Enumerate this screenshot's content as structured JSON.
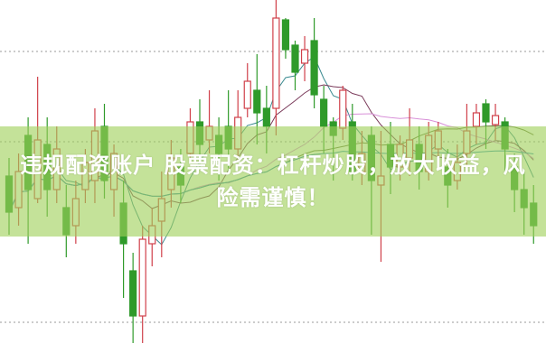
{
  "caption": {
    "line1": "违规配资账户 股票配资：杠杆炒股，放大收益，风",
    "line2": "险需谨慎！"
  },
  "colors": {
    "up": "#d0404a",
    "down": "#2f9a2a",
    "banner": "#a0d05a",
    "grid": "#999999",
    "ma5": "#3a8a90",
    "ma10": "#7a3a5a",
    "ma20": "#d890d8",
    "ma30": "#6a7a40",
    "ma60": "#3090b0"
  },
  "chart_data": {
    "type": "candlestick",
    "grid": "horizontal dotted",
    "ylim": [
      0,
      400
    ],
    "gridlines": [
      343,
      243,
      43
    ],
    "moving_averages": [
      5,
      10,
      20,
      30,
      60
    ],
    "candles": [
      [
        205,
        165,
        225,
        140
      ],
      [
        170,
        210,
        230,
        150
      ],
      [
        250,
        190,
        270,
        130
      ],
      [
        180,
        245,
        315,
        175
      ],
      [
        240,
        190,
        270,
        160
      ],
      [
        190,
        235,
        260,
        175
      ],
      [
        170,
        140,
        195,
        115
      ],
      [
        150,
        180,
        200,
        130
      ],
      [
        190,
        220,
        235,
        175
      ],
      [
        200,
        255,
        280,
        175
      ],
      [
        260,
        200,
        285,
        180
      ],
      [
        190,
        230,
        240,
        160
      ],
      [
        175,
        130,
        200,
        70
      ],
      [
        100,
        50,
        120,
        20
      ],
      [
        50,
        135,
        150,
        20
      ],
      [
        130,
        150,
        170,
        105
      ],
      [
        155,
        180,
        210,
        115
      ],
      [
        190,
        225,
        245,
        170
      ],
      [
        215,
        195,
        235,
        175
      ],
      [
        230,
        265,
        280,
        220
      ],
      [
        265,
        240,
        290,
        215
      ],
      [
        245,
        260,
        300,
        230
      ],
      [
        250,
        230,
        270,
        200
      ],
      [
        260,
        235,
        300,
        210
      ],
      [
        235,
        270,
        300,
        225
      ],
      [
        280,
        310,
        330,
        270
      ],
      [
        300,
        275,
        340,
        240
      ],
      [
        280,
        260,
        305,
        230
      ],
      [
        280,
        380,
        400,
        250
      ],
      [
        378,
        345,
        380,
        335
      ],
      [
        350,
        320,
        355,
        300
      ],
      [
        330,
        345,
        360,
        310
      ],
      [
        355,
        295,
        380,
        280
      ],
      [
        290,
        260,
        305,
        230
      ],
      [
        265,
        250,
        270,
        200
      ],
      [
        258,
        300,
        305,
        245
      ],
      [
        265,
        210,
        285,
        200
      ],
      [
        210,
        230,
        255,
        195
      ],
      [
        250,
        200,
        260,
        140
      ],
      [
        195,
        205,
        255,
        110
      ],
      [
        240,
        215,
        265,
        185
      ],
      [
        215,
        240,
        250,
        200
      ],
      [
        225,
        245,
        280,
        205
      ],
      [
        240,
        210,
        260,
        190
      ],
      [
        210,
        250,
        265,
        200
      ],
      [
        235,
        255,
        265,
        225
      ],
      [
        215,
        195,
        235,
        170
      ],
      [
        200,
        220,
        240,
        190
      ],
      [
        230,
        255,
        285,
        210
      ],
      [
        260,
        275,
        285,
        240
      ],
      [
        285,
        265,
        290,
        235
      ],
      [
        262,
        272,
        285,
        245
      ],
      [
        265,
        235,
        270,
        210
      ],
      [
        215,
        190,
        230,
        165
      ],
      [
        190,
        170,
        210,
        140
      ],
      [
        175,
        150,
        195,
        130
      ]
    ]
  }
}
